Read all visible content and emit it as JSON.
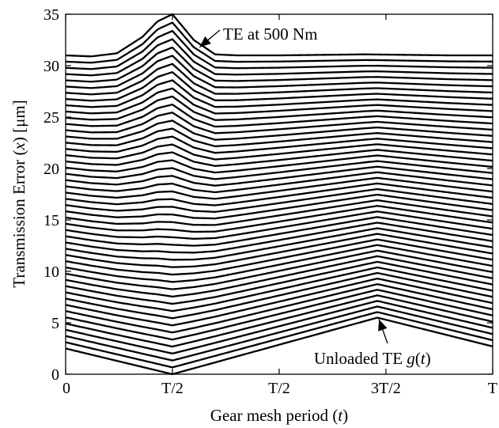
{
  "chart_data": {
    "type": "line",
    "xlabel": "Gear mesh period (t)",
    "ylabel": "Transmission Error (x) [μm]",
    "xlim": [
      0,
      1
    ],
    "ylim": [
      0,
      35
    ],
    "x_ticks": [
      {
        "value": 0,
        "label": "0"
      },
      {
        "value": 0.25,
        "label": "T/2"
      },
      {
        "value": 0.5,
        "label": "T/2"
      },
      {
        "value": 0.75,
        "label": "3T/2"
      },
      {
        "value": 1,
        "label": "T"
      }
    ],
    "y_ticks": [
      0,
      5,
      10,
      15,
      20,
      25,
      30,
      35
    ],
    "grid": false,
    "family": {
      "count": 48,
      "load_range_nm": [
        0,
        500
      ],
      "unloaded_curve": {
        "x": [
          0,
          0.25,
          0.73,
          1
        ],
        "y": [
          2.5,
          0,
          5.5,
          2.7
        ]
      },
      "max_load_curve": {
        "x": [
          0,
          0.06,
          0.12,
          0.18,
          0.215,
          0.25,
          0.3,
          0.35,
          0.4,
          0.5,
          0.7,
          0.9,
          1
        ],
        "y": [
          31,
          30.9,
          31.2,
          32.8,
          34.3,
          35,
          32.5,
          31.1,
          31.0,
          31.0,
          31.1,
          31.0,
          31.0
        ]
      }
    },
    "annotations": [
      {
        "label": "TE at 500 Nm",
        "points_to": {
          "x": 0.31,
          "y": 31.8
        }
      },
      {
        "label": "Unloaded TE g(t)",
        "points_to": {
          "x": 0.73,
          "y": 5.5
        }
      }
    ]
  }
}
